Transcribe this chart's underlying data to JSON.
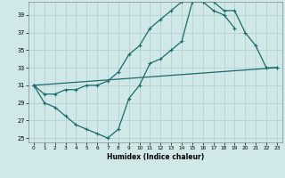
{
  "xlabel": "Humidex (Indice chaleur)",
  "xlim": [
    -0.5,
    23.5
  ],
  "ylim": [
    24.5,
    40.5
  ],
  "yticks": [
    25,
    27,
    29,
    31,
    33,
    35,
    37,
    39
  ],
  "xticks": [
    0,
    1,
    2,
    3,
    4,
    5,
    6,
    7,
    8,
    9,
    10,
    11,
    12,
    13,
    14,
    15,
    16,
    17,
    18,
    19,
    20,
    21,
    22,
    23
  ],
  "background_color": "#d0e8e8",
  "grid_color": "#b8d4d4",
  "line_color": "#1a6b6b",
  "line1_x": [
    0,
    1,
    2,
    3,
    4,
    5,
    6,
    7,
    8,
    9,
    10,
    11,
    12,
    13,
    14,
    15,
    16,
    17,
    18,
    19,
    20,
    21,
    22,
    23
  ],
  "line1_y": [
    31,
    29,
    28.5,
    27.5,
    26.5,
    26.0,
    25.5,
    25.0,
    26.0,
    29.5,
    31.0,
    33.5,
    34.0,
    35.0,
    36.0,
    40.5,
    40.5,
    40.5,
    39.5,
    39.5,
    37.0,
    35.5,
    33.0,
    33.0
  ],
  "line2_x": [
    0,
    1,
    2,
    3,
    4,
    5,
    6,
    7,
    8,
    9,
    10,
    11,
    12,
    13,
    14,
    15,
    16,
    17,
    18,
    19,
    20,
    21,
    22,
    23
  ],
  "line2_y": [
    31,
    30.0,
    30.0,
    30.5,
    30.5,
    31.0,
    31.0,
    31.5,
    32.5,
    34.5,
    35.5,
    37.5,
    38.5,
    39.5,
    40.5,
    40.5,
    40.5,
    39.5,
    39.0,
    37.5,
    null,
    null,
    null,
    null
  ],
  "line3_x": [
    0,
    23
  ],
  "line3_y": [
    31,
    33.0
  ]
}
